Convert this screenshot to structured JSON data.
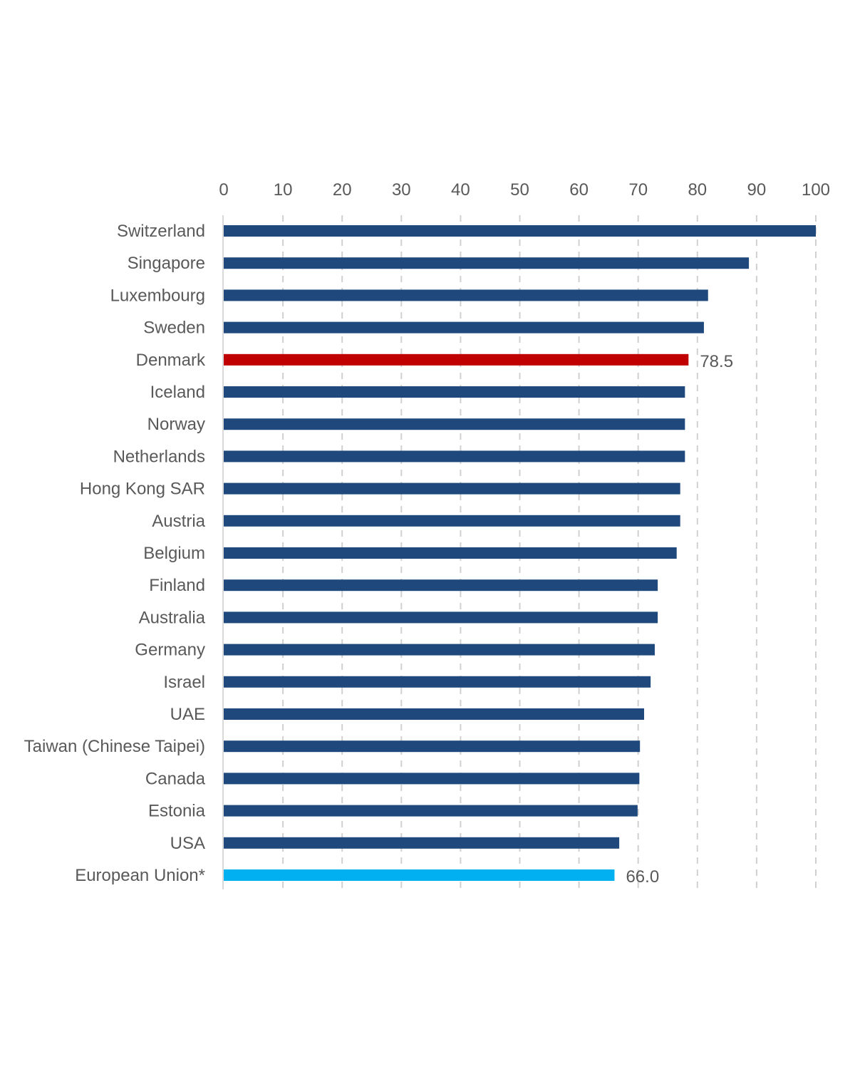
{
  "chart_data": {
    "type": "bar",
    "orientation": "horizontal",
    "title": "",
    "xlabel": "",
    "ylabel": "",
    "xlim": [
      0,
      100
    ],
    "xticks": [
      0,
      10,
      20,
      30,
      40,
      50,
      60,
      70,
      80,
      90,
      100
    ],
    "xaxis_position": "top",
    "grid": "vertical dashed",
    "categories": [
      "Switzerland",
      "Singapore",
      "Luxembourg",
      "Sweden",
      "Denmark",
      "Iceland",
      "Norway",
      "Netherlands",
      "Hong Kong SAR",
      "Austria",
      "Belgium",
      "Finland",
      "Australia",
      "Germany",
      "Israel",
      "UAE",
      "Taiwan (Chinese Taipei)",
      "Canada",
      "Estonia",
      "USA",
      "European Union*"
    ],
    "values": [
      100,
      88.7,
      81.8,
      81.1,
      78.5,
      77.9,
      77.9,
      77.9,
      77.1,
      77.1,
      76.5,
      73.3,
      73.3,
      72.8,
      72.1,
      71.0,
      70.3,
      70.2,
      69.9,
      66.8,
      66.0
    ],
    "data_labels": {
      "Denmark": "78.5",
      "European Union*": "66.0"
    },
    "colors": {
      "default": "#1f497d",
      "Denmark": "#c00000",
      "European Union*": "#00b0f0"
    }
  }
}
